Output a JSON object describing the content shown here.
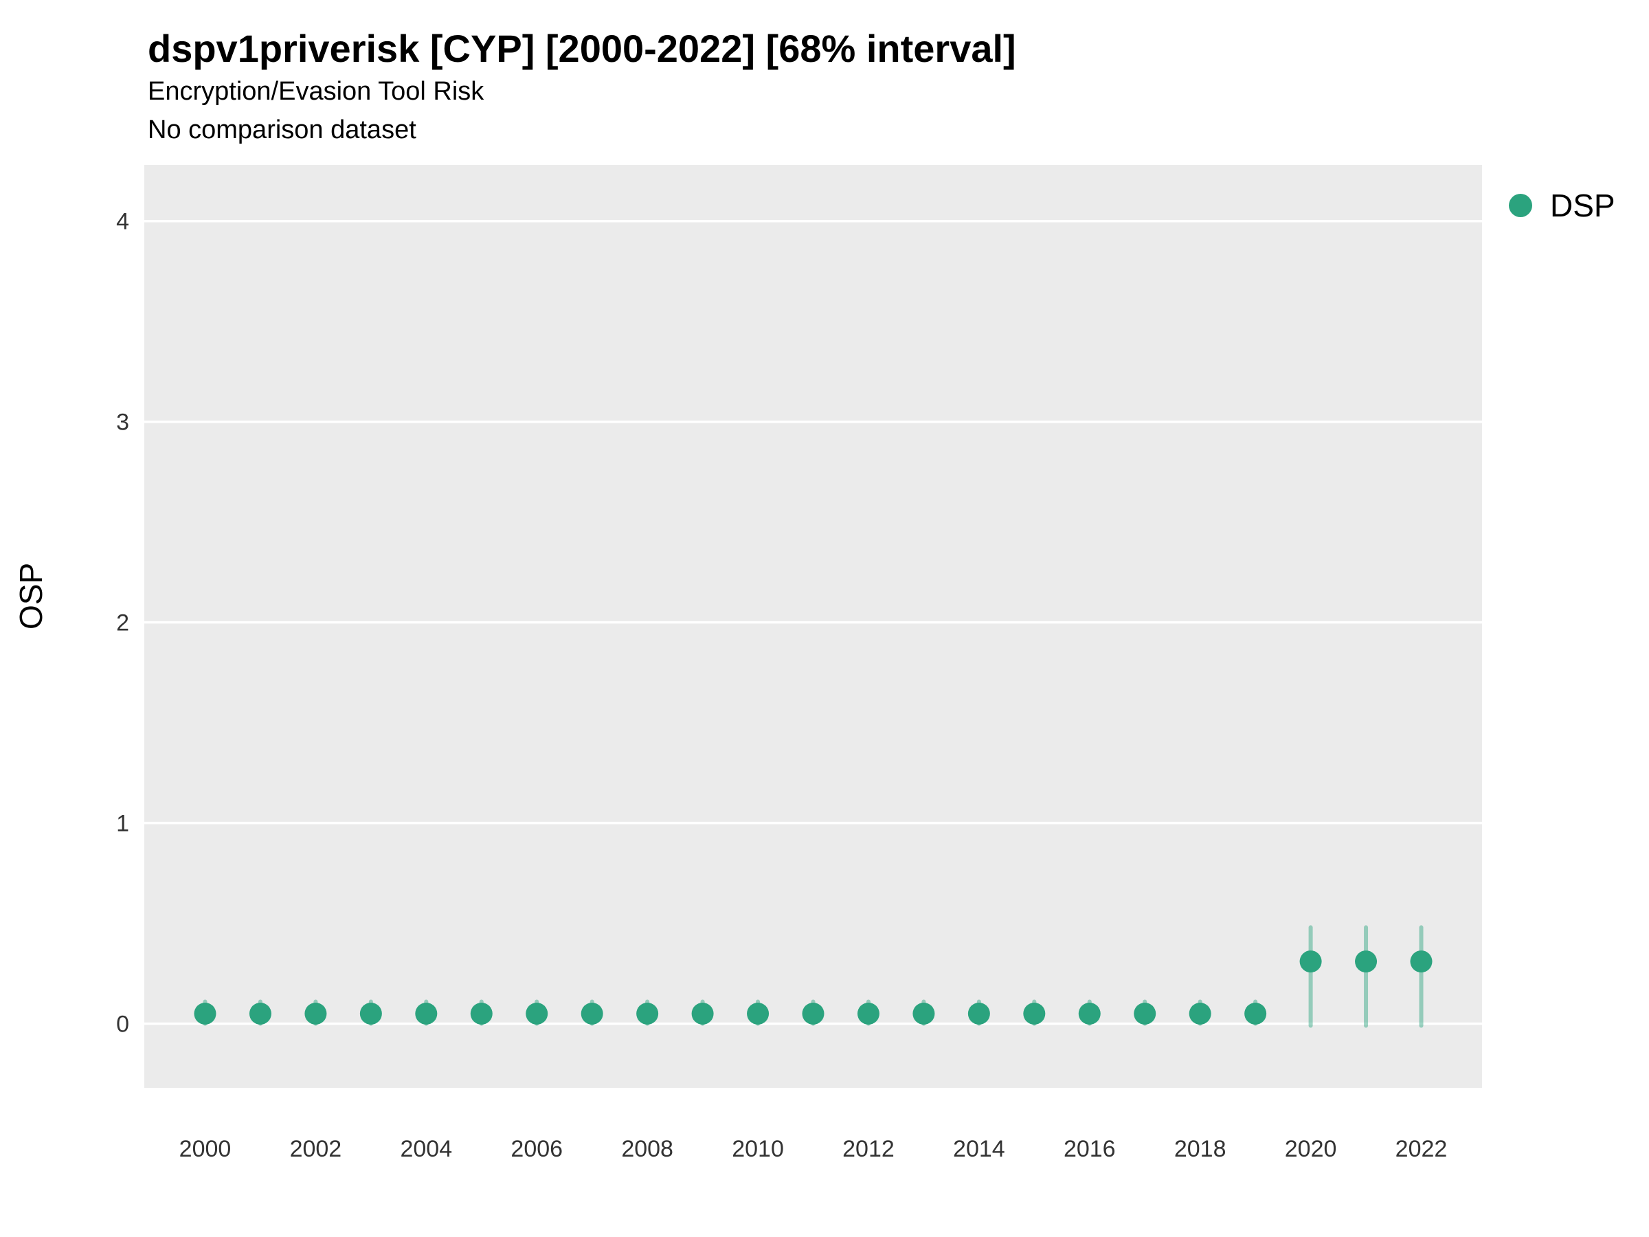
{
  "header": {
    "title": "dspv1priverisk [CYP] [2000-2022] [68% interval]",
    "subtitle": "Encryption/Evasion Tool Risk",
    "note": "No comparison dataset"
  },
  "legend": {
    "items": [
      {
        "label": "DSP",
        "color": "#2ba37e"
      }
    ]
  },
  "chart_data": {
    "type": "scatter",
    "title": "dspv1priverisk [CYP] [2000-2022] [68% interval]",
    "subtitle": "Encryption/Evasion Tool Risk",
    "note": "No comparison dataset",
    "xlabel": "",
    "ylabel": "OSP",
    "interval": "68%",
    "legend_position": "right",
    "grid": "major-horizontal-white-on-gray",
    "panel_color": "#ebebeb",
    "gridline_color": "#ffffff",
    "marker_color": "#2ba37e",
    "interval_color": "#2ba37e",
    "interval_opacity": 0.45,
    "xlim": [
      1998.9,
      2023.1
    ],
    "ylim": [
      -0.32,
      4.28
    ],
    "yticks": [
      0,
      1,
      2,
      3,
      4
    ],
    "xticks": [
      2000,
      2002,
      2004,
      2006,
      2008,
      2010,
      2012,
      2014,
      2016,
      2018,
      2020,
      2022
    ],
    "series": [
      {
        "name": "DSP",
        "points": [
          {
            "year": 2000,
            "value": 0.05,
            "lo": 0.0,
            "hi": 0.11
          },
          {
            "year": 2001,
            "value": 0.05,
            "lo": 0.0,
            "hi": 0.11
          },
          {
            "year": 2002,
            "value": 0.05,
            "lo": 0.0,
            "hi": 0.11
          },
          {
            "year": 2003,
            "value": 0.05,
            "lo": 0.0,
            "hi": 0.11
          },
          {
            "year": 2004,
            "value": 0.05,
            "lo": 0.0,
            "hi": 0.11
          },
          {
            "year": 2005,
            "value": 0.05,
            "lo": 0.0,
            "hi": 0.11
          },
          {
            "year": 2006,
            "value": 0.05,
            "lo": 0.0,
            "hi": 0.11
          },
          {
            "year": 2007,
            "value": 0.05,
            "lo": 0.0,
            "hi": 0.11
          },
          {
            "year": 2008,
            "value": 0.05,
            "lo": 0.0,
            "hi": 0.11
          },
          {
            "year": 2009,
            "value": 0.05,
            "lo": 0.0,
            "hi": 0.11
          },
          {
            "year": 2010,
            "value": 0.05,
            "lo": 0.0,
            "hi": 0.11
          },
          {
            "year": 2011,
            "value": 0.05,
            "lo": 0.0,
            "hi": 0.11
          },
          {
            "year": 2012,
            "value": 0.05,
            "lo": 0.0,
            "hi": 0.11
          },
          {
            "year": 2013,
            "value": 0.05,
            "lo": 0.0,
            "hi": 0.11
          },
          {
            "year": 2014,
            "value": 0.05,
            "lo": 0.0,
            "hi": 0.11
          },
          {
            "year": 2015,
            "value": 0.05,
            "lo": 0.0,
            "hi": 0.11
          },
          {
            "year": 2016,
            "value": 0.05,
            "lo": 0.0,
            "hi": 0.11
          },
          {
            "year": 2017,
            "value": 0.05,
            "lo": 0.0,
            "hi": 0.11
          },
          {
            "year": 2018,
            "value": 0.05,
            "lo": 0.0,
            "hi": 0.11
          },
          {
            "year": 2019,
            "value": 0.05,
            "lo": 0.0,
            "hi": 0.11
          },
          {
            "year": 2020,
            "value": 0.31,
            "lo": -0.01,
            "hi": 0.48
          },
          {
            "year": 2021,
            "value": 0.31,
            "lo": -0.01,
            "hi": 0.48
          },
          {
            "year": 2022,
            "value": 0.31,
            "lo": -0.01,
            "hi": 0.48
          }
        ]
      }
    ]
  }
}
